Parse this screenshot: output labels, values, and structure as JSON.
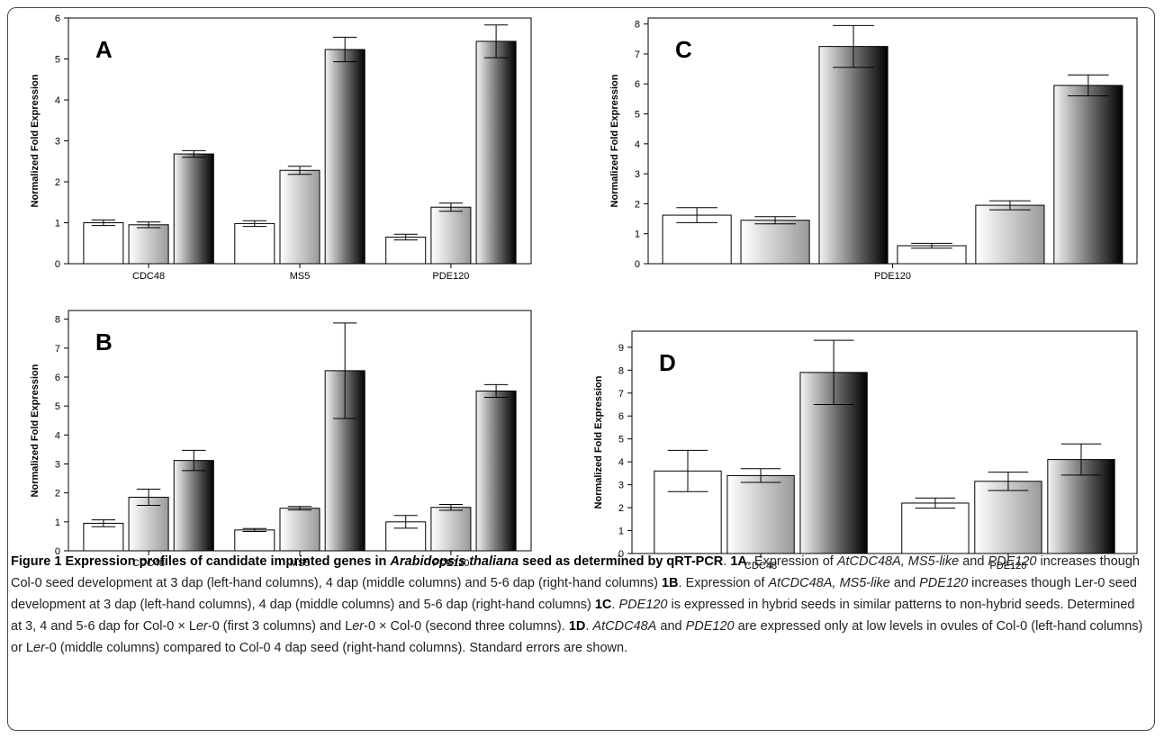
{
  "chart_data": [
    {
      "type": "bar",
      "panel_letter": "A",
      "ylabel": "Normalized Fold Expression",
      "ylim": [
        0,
        6
      ],
      "ytick_step": 1,
      "categories": [
        "CDC48",
        "MS5",
        "PDE120"
      ],
      "bars_per_category": 3,
      "values": [
        [
          1.0,
          0.95,
          2.68
        ],
        [
          0.98,
          2.28,
          5.23
        ],
        [
          0.65,
          1.38,
          5.43
        ]
      ],
      "errors": [
        [
          0.07,
          0.07,
          0.08
        ],
        [
          0.07,
          0.1,
          0.3
        ],
        [
          0.07,
          0.1,
          0.4
        ]
      ],
      "legend": "none",
      "grid": false
    },
    {
      "type": "bar",
      "panel_letter": "B",
      "ylabel": "Normalized Fold Expression",
      "ylim": [
        0,
        8.3
      ],
      "ytick_step": 1,
      "categories": [
        "CDC48",
        "MS5",
        "PDE120"
      ],
      "bars_per_category": 3,
      "values": [
        [
          0.95,
          1.85,
          3.12
        ],
        [
          0.72,
          1.47,
          6.22
        ],
        [
          1.0,
          1.5,
          5.52
        ]
      ],
      "errors": [
        [
          0.12,
          0.28,
          0.35
        ],
        [
          0.05,
          0.06,
          1.65
        ],
        [
          0.22,
          0.1,
          0.22
        ]
      ],
      "legend": "none",
      "grid": false
    },
    {
      "type": "bar",
      "panel_letter": "C",
      "ylabel": "Normalized Fold Expression",
      "ylim": [
        0,
        8.2
      ],
      "ytick_step": 1,
      "categories": [
        "PDE120"
      ],
      "bars_per_category": 6,
      "values": [
        [
          1.62,
          1.45,
          7.25,
          0.6,
          1.95,
          5.95
        ]
      ],
      "errors": [
        [
          0.25,
          0.12,
          0.7,
          0.08,
          0.15,
          0.35
        ]
      ],
      "legend": "none",
      "grid": false
    },
    {
      "type": "bar",
      "panel_letter": "D",
      "ylabel": "Normalized Fold Expression",
      "ylim": [
        0,
        9.7
      ],
      "ytick_step": 1,
      "categories": [
        "CDC48",
        "PDE120"
      ],
      "bars_per_category": 3,
      "values": [
        [
          3.6,
          3.4,
          7.9
        ],
        [
          2.2,
          3.15,
          4.1
        ]
      ],
      "errors": [
        [
          0.9,
          0.3,
          1.4
        ],
        [
          0.22,
          0.4,
          0.68
        ]
      ],
      "legend": "none",
      "grid": false
    }
  ],
  "caption": {
    "figure_label": "Figure 1",
    "title_a": "Expression profiles of candidate imprinted genes in",
    "title_species": "Arabidopsis thaliana",
    "title_b": "seed as determined by qRT-PCR",
    "p1a_label": "1A",
    "p1a_text_a": ". Expression of",
    "p1a_genes": "AtCDC48A, MS5-like",
    "p1a_text_b": "and",
    "p1a_gene2": "PDE120",
    "p1a_text_c": "increases though Col-0 seed development at 3 dap (left-hand columns), 4 dap (middle columns) and 5-6 dap (right-hand columns)",
    "p1b_label": "1B",
    "p1b_text_a": ". Expression of",
    "p1b_genes": "AtCDC48A, MS5-like",
    "p1b_text_b": "and",
    "p1b_gene2": "PDE120",
    "p1b_text_c": "increases though Ler-0 seed development at 3 dap (left-hand columns), 4 dap (middle columns) and 5-6 dap (right-hand columns)",
    "p1c_label": "1C",
    "p1c_gene": "PDE120",
    "p1c_text_a": "is expressed in hybrid seeds in similar patterns to non-hybrid seeds. Determined at 3, 4 and 5-6 dap for Col-0 × L",
    "p1c_er1": "er",
    "p1c_text_b": "-0 (first 3 columns) and L",
    "p1c_er2": "er",
    "p1c_text_c": "-0 × Col-0 (second three columns).",
    "p1d_label": "1D",
    "p1d_genes": "AtCDC48A",
    "p1d_text_a": "and",
    "p1d_gene2": "PDE120",
    "p1d_text_b": "are expressed only at low levels in ovules of Col-0 (left-hand columns) or L",
    "p1d_er": "er",
    "p1d_text_c": "-0 (middle columns) compared to Col-0 4 dap seed (right-hand columns). Standard errors are shown."
  }
}
